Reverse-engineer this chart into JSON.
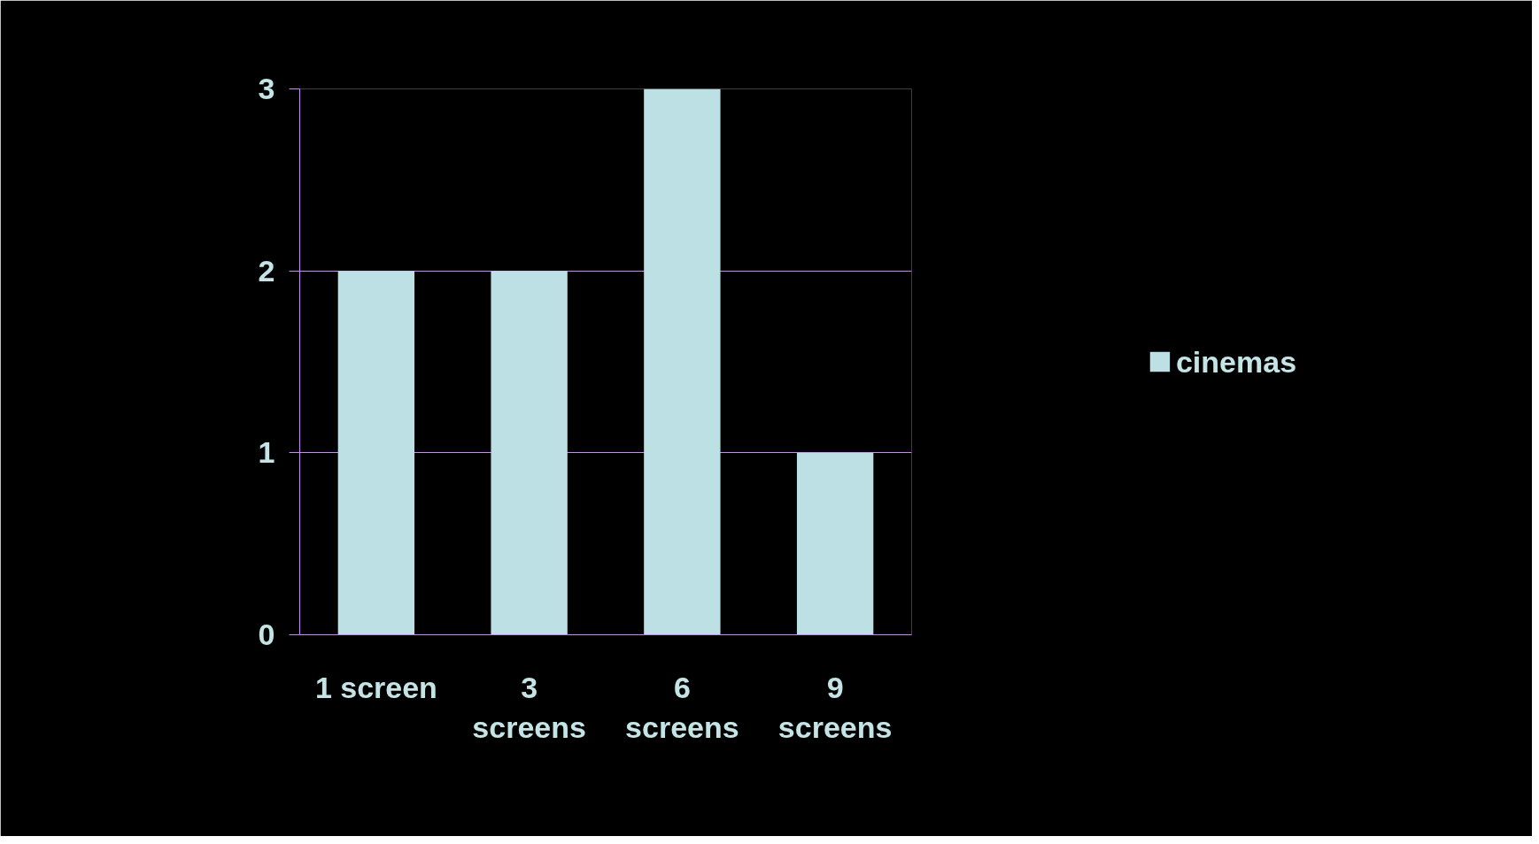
{
  "chart_data": {
    "type": "bar",
    "categories": [
      "1 screen",
      "3\nscreens",
      "6\nscreens",
      "9\nscreens"
    ],
    "series": [
      {
        "name": "cinemas",
        "color": "#bce0e3",
        "values": [
          2,
          2,
          3,
          1
        ]
      }
    ],
    "ylim": [
      0,
      3
    ],
    "yticks": [
      0,
      1,
      2,
      3
    ],
    "grid": "y",
    "legend": "right"
  }
}
